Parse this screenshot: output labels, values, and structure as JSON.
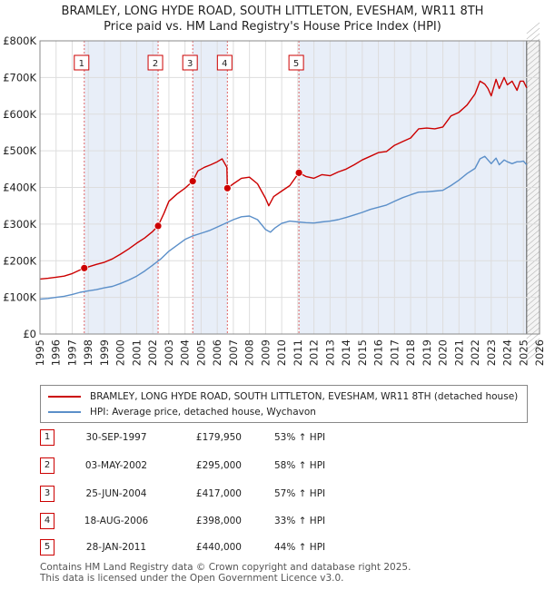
{
  "title_line1": "BRAMLEY, LONG HYDE ROAD, SOUTH LITTLETON, EVESHAM, WR11 8TH",
  "title_line2": "Price paid vs. HM Land Registry's House Price Index (HPI)",
  "legend": {
    "property_label": "BRAMLEY, LONG HYDE ROAD, SOUTH LITTLETON, EVESHAM, WR11 8TH (detached house)",
    "hpi_label": "HPI: Average price, detached house, Wychavon",
    "property_color": "#cc0000",
    "hpi_color": "#5b8fc9"
  },
  "sales": [
    {
      "num": "1",
      "date": "30-SEP-1997",
      "price": "£179,950",
      "hpi": "53% ↑ HPI"
    },
    {
      "num": "2",
      "date": "03-MAY-2002",
      "price": "£295,000",
      "hpi": "58% ↑ HPI"
    },
    {
      "num": "3",
      "date": "25-JUN-2004",
      "price": "£417,000",
      "hpi": "57% ↑ HPI"
    },
    {
      "num": "4",
      "date": "18-AUG-2006",
      "price": "£398,000",
      "hpi": "33% ↑ HPI"
    },
    {
      "num": "5",
      "date": "28-JAN-2011",
      "price": "£440,000",
      "hpi": "44% ↑ HPI"
    }
  ],
  "footer_line1": "Contains HM Land Registry data © Crown copyright and database right 2025.",
  "footer_line2": "This data is licensed under the Open Government Licence v3.0.",
  "chart_data": {
    "type": "line",
    "title": "BRAMLEY, LONG HYDE ROAD, SOUTH LITTLETON, EVESHAM, WR11 8TH",
    "subtitle": "Price paid vs. HM Land Registry's House Price Index (HPI)",
    "xlabel": "",
    "ylabel": "",
    "xlim": [
      1995,
      2026
    ],
    "ylim": [
      0,
      800000
    ],
    "x_ticks": [
      1995,
      1996,
      1997,
      1998,
      1999,
      2000,
      2001,
      2002,
      2003,
      2004,
      2005,
      2006,
      2007,
      2008,
      2009,
      2010,
      2011,
      2012,
      2013,
      2014,
      2015,
      2016,
      2017,
      2018,
      2019,
      2020,
      2021,
      2022,
      2023,
      2024,
      2025,
      2026
    ],
    "y_ticks": [
      0,
      100000,
      200000,
      300000,
      400000,
      500000,
      600000,
      700000,
      800000
    ],
    "y_tick_labels": [
      "£0",
      "£100K",
      "£200K",
      "£300K",
      "£400K",
      "£500K",
      "£600K",
      "£700K",
      "£800K"
    ],
    "grid": true,
    "sale_points": [
      {
        "label": "1",
        "x": 1997.75,
        "y": 179950
      },
      {
        "label": "2",
        "x": 2002.33,
        "y": 295000
      },
      {
        "label": "3",
        "x": 2004.48,
        "y": 417000
      },
      {
        "label": "4",
        "x": 2006.63,
        "y": 398000
      },
      {
        "label": "5",
        "x": 2011.07,
        "y": 440000
      }
    ],
    "series": [
      {
        "name": "BRAMLEY, LONG HYDE ROAD, SOUTH LITTLETON, EVESHAM, WR11 8TH (detached house)",
        "color": "#cc0000",
        "x": [
          1995.0,
          1995.5,
          1996.0,
          1996.5,
          1997.0,
          1997.5,
          1997.75,
          1998.0,
          1998.5,
          1999.0,
          1999.5,
          2000.0,
          2000.5,
          2001.0,
          2001.5,
          2002.0,
          2002.33,
          2002.7,
          2003.0,
          2003.5,
          2004.0,
          2004.48,
          2004.8,
          2005.2,
          2005.6,
          2006.0,
          2006.3,
          2006.6,
          2006.63,
          2007.0,
          2007.5,
          2008.0,
          2008.5,
          2009.0,
          2009.2,
          2009.5,
          2010.0,
          2010.5,
          2011.07,
          2011.5,
          2012.0,
          2012.5,
          2013.0,
          2013.5,
          2014.0,
          2014.5,
          2015.0,
          2015.5,
          2016.0,
          2016.5,
          2017.0,
          2017.5,
          2018.0,
          2018.5,
          2019.0,
          2019.5,
          2020.0,
          2020.5,
          2021.0,
          2021.5,
          2022.0,
          2022.3,
          2022.6,
          2022.8,
          2023.0,
          2023.3,
          2023.5,
          2023.8,
          2024.0,
          2024.3,
          2024.6,
          2024.8,
          2025.0,
          2025.2
        ],
        "y": [
          150000,
          152000,
          155000,
          158000,
          165000,
          175000,
          179950,
          183000,
          190000,
          196000,
          205000,
          218000,
          232000,
          248000,
          262000,
          280000,
          295000,
          330000,
          362000,
          382000,
          398000,
          417000,
          445000,
          455000,
          462000,
          470000,
          478000,
          455000,
          398000,
          410000,
          425000,
          428000,
          410000,
          370000,
          350000,
          375000,
          390000,
          405000,
          440000,
          430000,
          425000,
          435000,
          432000,
          442000,
          450000,
          462000,
          475000,
          485000,
          495000,
          498000,
          515000,
          525000,
          535000,
          560000,
          562000,
          560000,
          565000,
          595000,
          605000,
          625000,
          655000,
          690000,
          682000,
          670000,
          650000,
          695000,
          670000,
          700000,
          680000,
          690000,
          665000,
          690000,
          690000,
          672000
        ]
      },
      {
        "name": "HPI: Average price, detached house, Wychavon",
        "color": "#5b8fc9",
        "x": [
          1995.0,
          1995.5,
          1996.0,
          1996.5,
          1997.0,
          1997.5,
          1998.0,
          1998.5,
          1999.0,
          1999.5,
          2000.0,
          2000.5,
          2001.0,
          2001.5,
          2002.0,
          2002.5,
          2003.0,
          2003.5,
          2004.0,
          2004.5,
          2005.0,
          2005.5,
          2006.0,
          2006.5,
          2007.0,
          2007.5,
          2008.0,
          2008.5,
          2009.0,
          2009.3,
          2009.6,
          2010.0,
          2010.5,
          2011.0,
          2011.5,
          2012.0,
          2012.5,
          2013.0,
          2013.5,
          2014.0,
          2014.5,
          2015.0,
          2015.5,
          2016.0,
          2016.5,
          2017.0,
          2017.5,
          2018.0,
          2018.5,
          2019.0,
          2019.5,
          2020.0,
          2020.5,
          2021.0,
          2021.5,
          2022.0,
          2022.3,
          2022.6,
          2023.0,
          2023.3,
          2023.5,
          2023.8,
          2024.0,
          2024.3,
          2024.6,
          2024.8,
          2025.0,
          2025.2
        ],
        "y": [
          95000,
          97000,
          100000,
          103000,
          108000,
          114000,
          118000,
          121000,
          126000,
          130000,
          138000,
          147000,
          158000,
          172000,
          188000,
          205000,
          226000,
          242000,
          258000,
          268000,
          275000,
          282000,
          292000,
          302000,
          312000,
          320000,
          322000,
          312000,
          285000,
          278000,
          290000,
          302000,
          308000,
          306000,
          304000,
          303000,
          306000,
          308000,
          312000,
          318000,
          325000,
          332000,
          340000,
          346000,
          352000,
          362000,
          372000,
          380000,
          387000,
          388000,
          390000,
          392000,
          405000,
          420000,
          438000,
          452000,
          478000,
          485000,
          465000,
          480000,
          462000,
          475000,
          470000,
          465000,
          470000,
          470000,
          472000,
          462000
        ]
      }
    ]
  }
}
